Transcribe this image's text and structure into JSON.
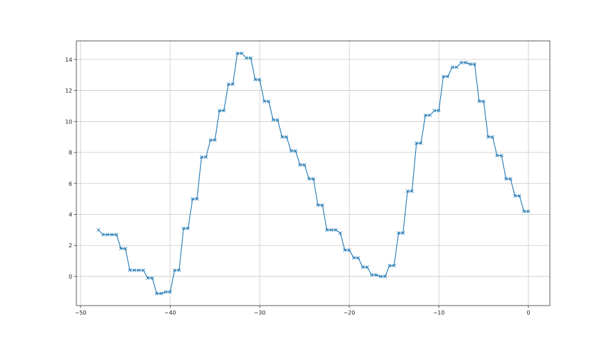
{
  "chart_data": {
    "type": "line",
    "title": "",
    "xlabel": "",
    "ylabel": "",
    "xlim": [
      -50.47,
      2.4
    ],
    "ylim": [
      -1.88,
      15.2
    ],
    "grid": true,
    "marker": "x",
    "line_color": "#1f77b4",
    "xticks": [
      -50,
      -40,
      -30,
      -20,
      -10,
      0
    ],
    "xtick_labels": [
      "−50",
      "−40",
      "−30",
      "−20",
      "−10",
      "0"
    ],
    "yticks": [
      0,
      2,
      4,
      6,
      8,
      10,
      12,
      14
    ],
    "ytick_labels": [
      "0",
      "2",
      "4",
      "6",
      "8",
      "10",
      "12",
      "14"
    ],
    "x": [
      -48,
      -47.5,
      -47,
      -46.5,
      -46,
      -45.5,
      -45,
      -44.5,
      -44,
      -43.5,
      -43,
      -42.5,
      -42,
      -41.5,
      -41,
      -40.5,
      -40,
      -39.5,
      -39,
      -38.5,
      -38,
      -37.5,
      -37,
      -36.5,
      -36,
      -35.5,
      -35,
      -34.5,
      -34,
      -33.5,
      -33,
      -32.5,
      -32,
      -31.5,
      -31,
      -30.5,
      -30,
      -29.5,
      -29,
      -28.5,
      -28,
      -27.5,
      -27,
      -26.5,
      -26,
      -25.5,
      -25,
      -24.5,
      -24,
      -23.5,
      -23,
      -22.5,
      -22,
      -21.5,
      -21,
      -20.5,
      -20,
      -19.5,
      -19,
      -18.5,
      -18,
      -17.5,
      -17,
      -16.5,
      -16,
      -15.5,
      -15,
      -14.5,
      -14,
      -13.5,
      -13,
      -12.5,
      -12,
      -11.5,
      -11,
      -10.5,
      -10,
      -9.5,
      -9,
      -8.5,
      -8,
      -7.5,
      -7,
      -6.5,
      -6,
      -5.5,
      -5,
      -4.5,
      -4,
      -3.5,
      -3,
      -2.5,
      -2,
      -1.5,
      -1,
      -0.5,
      0
    ],
    "y": [
      3.0,
      2.7,
      2.7,
      2.7,
      2.7,
      1.8,
      1.8,
      0.4,
      0.4,
      0.4,
      0.4,
      -0.1,
      -0.1,
      -1.1,
      -1.1,
      -1.0,
      -1.0,
      0.4,
      0.4,
      3.1,
      3.1,
      5.0,
      5.0,
      7.7,
      7.7,
      8.8,
      8.8,
      10.7,
      10.7,
      12.4,
      12.4,
      14.4,
      14.4,
      14.1,
      14.1,
      12.7,
      12.7,
      11.3,
      11.3,
      10.1,
      10.1,
      9.0,
      9.0,
      8.1,
      8.1,
      7.2,
      7.2,
      6.3,
      6.3,
      4.6,
      4.6,
      3.0,
      3.0,
      3.0,
      2.8,
      1.7,
      1.7,
      1.2,
      1.2,
      0.6,
      0.6,
      0.1,
      0.1,
      0.0,
      0.0,
      0.7,
      0.7,
      2.8,
      2.8,
      5.5,
      5.5,
      8.6,
      8.6,
      10.4,
      10.4,
      10.7,
      10.7,
      12.9,
      12.9,
      13.5,
      13.5,
      13.8,
      13.8,
      13.7,
      13.7,
      11.3,
      11.3,
      9.0,
      9.0,
      7.8,
      7.8,
      6.3,
      6.3,
      5.2,
      5.2,
      4.2,
      4.2
    ]
  }
}
